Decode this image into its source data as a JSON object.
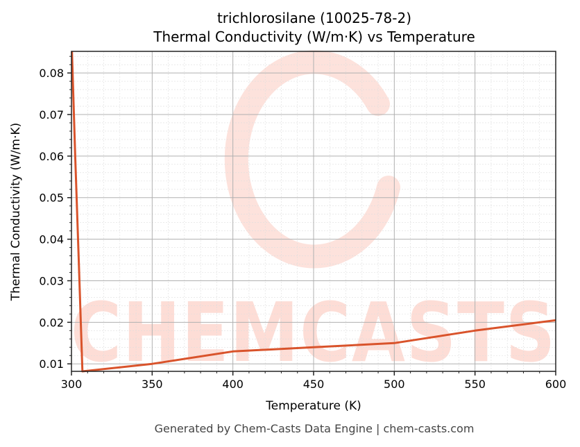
{
  "title": {
    "line1": "trichlorosilane (10025-78-2)",
    "line2": "Thermal Conductivity (W/m·K) vs Temperature"
  },
  "footer": "Generated by Chem-Casts Data Engine | chem-casts.com",
  "watermark": {
    "text": "CHEMCASTS",
    "color": "#FDDDD6"
  },
  "colors": {
    "line": "#D9532B",
    "major_grid": "#b0b0b0",
    "minor_grid": "#dddddd",
    "axis": "#222222"
  },
  "chart_data": {
    "type": "line",
    "title": "trichlorosilane (10025-78-2) Thermal Conductivity (W/m·K) vs Temperature",
    "xlabel": "Temperature (K)",
    "ylabel": "Thermal Conductivity (W/m·K)",
    "xlim": [
      300,
      600
    ],
    "ylim": [
      0.0082,
      0.0852
    ],
    "xticks": [
      300,
      350,
      400,
      450,
      500,
      550,
      600
    ],
    "yticks": [
      0.01,
      0.02,
      0.03,
      0.04,
      0.05,
      0.06,
      0.07,
      0.08
    ],
    "xtick_labels": [
      "300",
      "350",
      "400",
      "450",
      "500",
      "550",
      "600"
    ],
    "ytick_labels": [
      "0.01",
      "0.02",
      "0.03",
      "0.04",
      "0.05",
      "0.06",
      "0.07",
      "0.08"
    ],
    "grid": {
      "major": true,
      "minor": true
    },
    "legend": null,
    "series": [
      {
        "name": "Thermal Conductivity",
        "x": [
          300.3,
          302.3,
          304.5,
          306.8,
          350,
          400,
          450,
          500,
          550,
          600
        ],
        "y": [
          0.0852,
          0.06,
          0.035,
          0.0082,
          0.01,
          0.013,
          0.014,
          0.015,
          0.018,
          0.0205
        ]
      }
    ]
  }
}
